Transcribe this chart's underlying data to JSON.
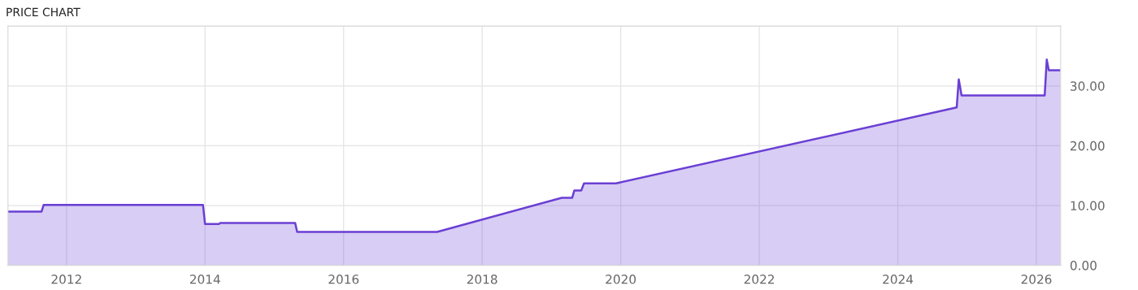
{
  "chart_data": {
    "type": "area",
    "title": "PRICE CHART",
    "x": [
      2011.155,
      2011.64,
      2011.67,
      2013.97,
      2014.0,
      2014.2,
      2014.22,
      2015.3,
      2015.33,
      2017.35,
      2019.15,
      2019.3,
      2019.33,
      2019.43,
      2019.47,
      2019.93,
      2024.85,
      2024.88,
      2024.92,
      2026.12,
      2026.15,
      2026.18,
      2026.35
    ],
    "series": [
      {
        "color": "#6a3fd4",
        "values": [
          9.0,
          9.0,
          10.1,
          10.1,
          6.9,
          6.9,
          7.1,
          7.1,
          5.6,
          5.6,
          11.3,
          11.3,
          12.5,
          12.5,
          13.7,
          13.7,
          26.4,
          31.1,
          28.4,
          28.4,
          34.4,
          32.6,
          32.6
        ]
      }
    ],
    "xlim": [
      2011.155,
      2026.35
    ],
    "xticks": [
      2012,
      2014,
      2016,
      2018,
      2020,
      2022,
      2024,
      2026
    ],
    "ylim": [
      0,
      40
    ],
    "yticks": [
      {
        "value": 0,
        "label": "0.00"
      },
      {
        "value": 10,
        "label": "10.00"
      },
      {
        "value": 20,
        "label": "20.00"
      },
      {
        "value": 30,
        "label": "30.00"
      }
    ],
    "grid": true,
    "legend": false,
    "marker": "none",
    "line_style": "solid"
  }
}
